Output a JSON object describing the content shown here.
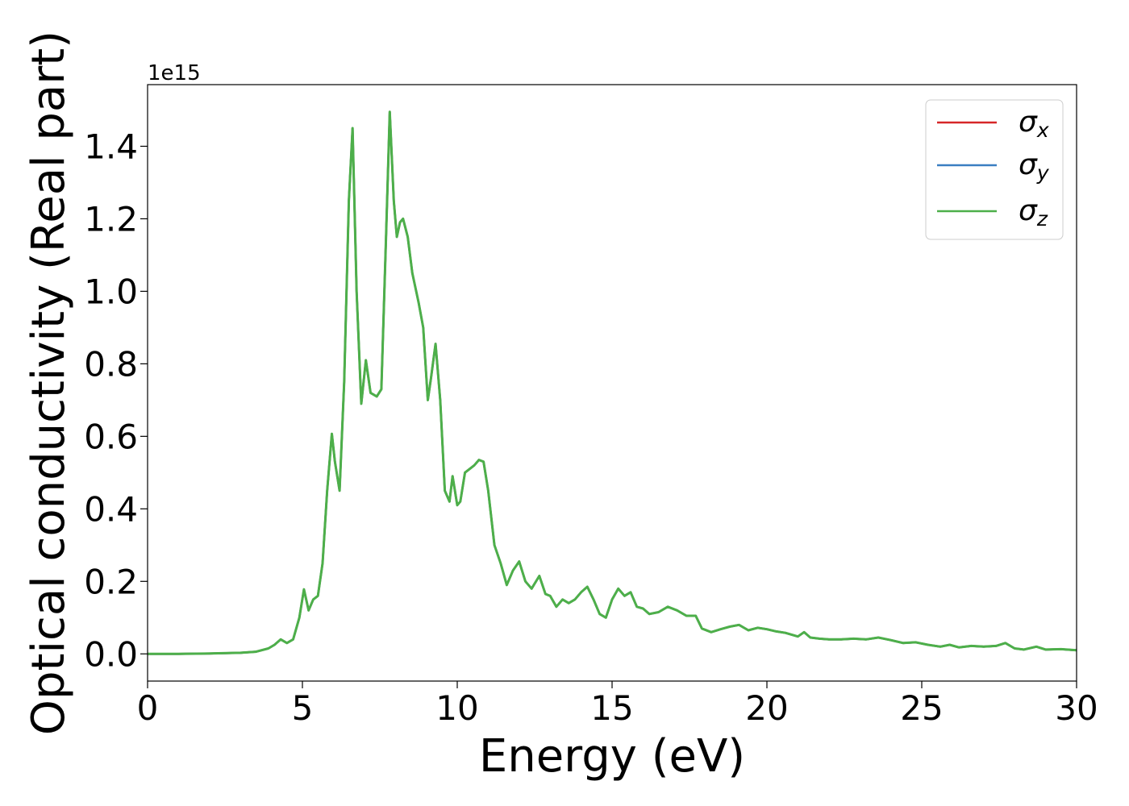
{
  "chart_data": {
    "type": "line",
    "xlabel": "Energy (eV)",
    "ylabel": "Optical conductivity (Real part)",
    "offset_label": "1e15",
    "xlim": [
      0,
      30
    ],
    "ylim": [
      -0.075,
      1.57
    ],
    "scale": 1000000000000000.0,
    "xticks": [
      0,
      5,
      10,
      15,
      20,
      25,
      30
    ],
    "xtick_labels": [
      "0",
      "5",
      "10",
      "15",
      "20",
      "25",
      "30"
    ],
    "yticks": [
      0.0,
      0.2,
      0.4,
      0.6,
      0.8,
      1.0,
      1.2,
      1.4
    ],
    "ytick_labels": [
      "0.0",
      "0.2",
      "0.4",
      "0.6",
      "0.8",
      "1.0",
      "1.2",
      "1.4"
    ],
    "grid": false,
    "legend_position": "top-right",
    "series": [
      {
        "name": "x",
        "legend_label": "σ",
        "subscript": "x",
        "color": "#d62728"
      },
      {
        "name": "y",
        "legend_label": "σ",
        "subscript": "y",
        "color": "#3a7fc1"
      },
      {
        "name": "z",
        "legend_label": "σ",
        "subscript": "z",
        "color": "#4daf4a"
      }
    ],
    "x": [
      0,
      1,
      2,
      3,
      3.5,
      3.9,
      4.1,
      4.3,
      4.5,
      4.7,
      4.9,
      5.05,
      5.2,
      5.35,
      5.5,
      5.65,
      5.8,
      5.95,
      6.05,
      6.2,
      6.35,
      6.5,
      6.62,
      6.75,
      6.9,
      7.05,
      7.2,
      7.4,
      7.55,
      7.7,
      7.82,
      7.95,
      8.05,
      8.15,
      8.25,
      8.4,
      8.55,
      8.75,
      8.9,
      9.05,
      9.15,
      9.3,
      9.45,
      9.6,
      9.75,
      9.85,
      10.0,
      10.1,
      10.25,
      10.4,
      10.55,
      10.7,
      10.85,
      11.0,
      11.2,
      11.4,
      11.6,
      11.8,
      12.0,
      12.2,
      12.4,
      12.65,
      12.85,
      13.0,
      13.2,
      13.4,
      13.6,
      13.8,
      14.0,
      14.2,
      14.4,
      14.6,
      14.8,
      15.0,
      15.2,
      15.4,
      15.6,
      15.8,
      16.0,
      16.2,
      16.5,
      16.8,
      17.1,
      17.4,
      17.7,
      17.9,
      18.2,
      18.5,
      18.8,
      19.1,
      19.4,
      19.7,
      20.0,
      20.3,
      20.6,
      21.0,
      21.2,
      21.4,
      21.7,
      22.0,
      22.4,
      22.8,
      23.2,
      23.6,
      24.0,
      24.4,
      24.8,
      25.2,
      25.6,
      25.9,
      26.2,
      26.6,
      27.0,
      27.4,
      27.7,
      28.0,
      28.3,
      28.7,
      29.0,
      29.5,
      30.0
    ],
    "values": [
      0.0,
      0.0,
      0.001,
      0.003,
      0.006,
      0.015,
      0.025,
      0.04,
      0.03,
      0.04,
      0.1,
      0.178,
      0.12,
      0.15,
      0.16,
      0.25,
      0.45,
      0.607,
      0.53,
      0.45,
      0.75,
      1.25,
      1.45,
      1.0,
      0.69,
      0.81,
      0.72,
      0.71,
      0.73,
      1.15,
      1.495,
      1.25,
      1.15,
      1.19,
      1.2,
      1.15,
      1.05,
      0.97,
      0.9,
      0.7,
      0.76,
      0.855,
      0.7,
      0.45,
      0.42,
      0.49,
      0.41,
      0.42,
      0.5,
      0.51,
      0.52,
      0.535,
      0.53,
      0.45,
      0.3,
      0.25,
      0.19,
      0.23,
      0.255,
      0.2,
      0.18,
      0.215,
      0.165,
      0.16,
      0.13,
      0.15,
      0.14,
      0.15,
      0.17,
      0.185,
      0.15,
      0.11,
      0.1,
      0.15,
      0.18,
      0.16,
      0.17,
      0.13,
      0.125,
      0.11,
      0.115,
      0.13,
      0.12,
      0.105,
      0.105,
      0.07,
      0.06,
      0.068,
      0.075,
      0.08,
      0.065,
      0.072,
      0.068,
      0.062,
      0.058,
      0.048,
      0.06,
      0.045,
      0.042,
      0.04,
      0.04,
      0.042,
      0.04,
      0.045,
      0.038,
      0.03,
      0.032,
      0.025,
      0.02,
      0.025,
      0.018,
      0.022,
      0.02,
      0.022,
      0.03,
      0.015,
      0.012,
      0.02,
      0.012,
      0.013,
      0.01
    ]
  }
}
